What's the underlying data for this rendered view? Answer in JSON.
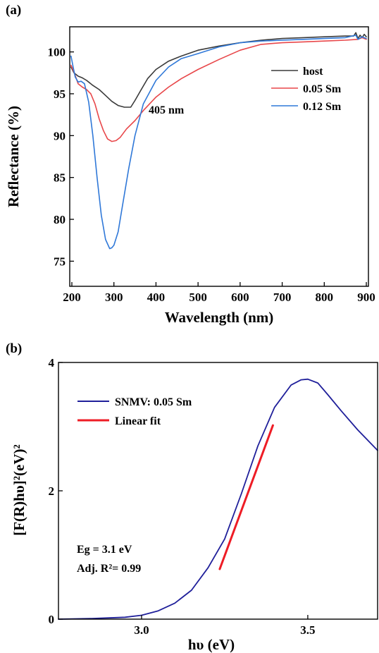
{
  "chart_data": [
    {
      "panel_label": "(a)",
      "type": "line",
      "xlabel": "Wavelength (nm)",
      "ylabel": "Reflectance (%)",
      "xlim": [
        195,
        905
      ],
      "ylim": [
        72,
        103
      ],
      "xticks": [
        200,
        300,
        400,
        500,
        600,
        700,
        800,
        900
      ],
      "yticks": [
        75,
        80,
        85,
        90,
        95,
        100
      ],
      "legend_position": "right",
      "annotation": {
        "text": "405 nm",
        "x": 405,
        "y": 93.0
      },
      "series": [
        {
          "name": "host",
          "color": "#3a3a3a",
          "x": [
            198,
            205,
            215,
            225,
            235,
            250,
            265,
            280,
            295,
            310,
            325,
            340,
            350,
            365,
            380,
            400,
            430,
            460,
            500,
            550,
            600,
            650,
            700,
            750,
            800,
            850,
            870,
            875,
            880,
            885,
            890,
            895,
            900
          ],
          "y": [
            98.2,
            97.5,
            97.1,
            96.9,
            96.6,
            96.0,
            95.5,
            94.8,
            94.1,
            93.6,
            93.4,
            93.4,
            94.2,
            95.5,
            96.8,
            97.9,
            98.9,
            99.5,
            100.2,
            100.7,
            101.1,
            101.4,
            101.6,
            101.7,
            101.8,
            101.9,
            101.9,
            102.3,
            101.6,
            102.0,
            101.7,
            102.1,
            101.8
          ]
        },
        {
          "name": "0.05 Sm",
          "color": "#e8474a",
          "x": [
            198,
            205,
            215,
            225,
            235,
            245,
            255,
            265,
            275,
            285,
            295,
            305,
            315,
            330,
            350,
            370,
            400,
            430,
            460,
            500,
            550,
            600,
            650,
            700,
            750,
            800,
            850,
            880,
            890,
            900
          ],
          "y": [
            98.4,
            97.6,
            96.2,
            95.8,
            95.5,
            95.0,
            93.8,
            92.0,
            90.6,
            89.6,
            89.3,
            89.4,
            89.8,
            90.8,
            91.8,
            93.0,
            94.6,
            95.8,
            96.8,
            97.9,
            99.1,
            100.2,
            100.9,
            101.1,
            101.2,
            101.3,
            101.4,
            101.5,
            101.7,
            101.5
          ]
        },
        {
          "name": "0.12 Sm",
          "color": "#2f78d8",
          "x": [
            198,
            203,
            208,
            215,
            222,
            230,
            240,
            250,
            260,
            270,
            280,
            290,
            295,
            300,
            310,
            320,
            335,
            350,
            370,
            400,
            430,
            460,
            500,
            550,
            600,
            650,
            700,
            750,
            800,
            850,
            875,
            880,
            890,
            900
          ],
          "y": [
            99.5,
            98.2,
            97.0,
            96.4,
            96.5,
            96.2,
            94.0,
            90.0,
            85.0,
            80.5,
            77.6,
            76.5,
            76.6,
            76.9,
            78.5,
            81.5,
            86.0,
            90.0,
            93.8,
            96.6,
            98.2,
            99.2,
            99.8,
            100.6,
            101.1,
            101.3,
            101.4,
            101.5,
            101.6,
            101.7,
            102.0,
            101.5,
            101.8,
            101.6
          ]
        }
      ]
    },
    {
      "panel_label": "(b)",
      "type": "line",
      "xlabel": "hυ (eV)",
      "ylabel": "[F(R)hυ]²(eV)²",
      "xlim": [
        2.75,
        3.71
      ],
      "ylim": [
        0,
        4
      ],
      "xticks": [
        3.0,
        3.5
      ],
      "yticks": [
        0,
        2,
        4
      ],
      "legend_position": "top-left",
      "annotations": {
        "eg": "Eg = 3.1 eV",
        "r2": "Adj. R²= 0.99"
      },
      "series": [
        {
          "name": "SNMV: 0.05 Sm",
          "color": "#1f1f9a",
          "x": [
            2.75,
            2.85,
            2.95,
            3.0,
            3.05,
            3.1,
            3.15,
            3.2,
            3.25,
            3.3,
            3.35,
            3.4,
            3.45,
            3.48,
            3.5,
            3.53,
            3.56,
            3.6,
            3.65,
            3.71
          ],
          "y": [
            0.0,
            0.01,
            0.03,
            0.06,
            0.13,
            0.25,
            0.45,
            0.8,
            1.25,
            1.95,
            2.7,
            3.3,
            3.65,
            3.73,
            3.74,
            3.68,
            3.5,
            3.25,
            2.95,
            2.63
          ]
        },
        {
          "name": "Linear fit",
          "color": "#ee1c25",
          "x": [
            3.235,
            3.395
          ],
          "y": [
            0.78,
            3.02
          ]
        }
      ]
    }
  ]
}
